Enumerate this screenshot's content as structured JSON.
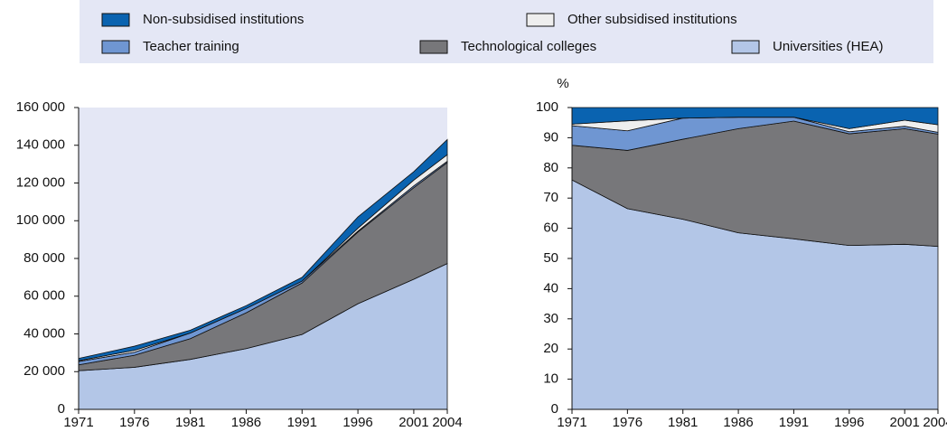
{
  "legend_positions_note_free": null,
  "chart_data": [
    {
      "type": "area",
      "stacked": true,
      "background": "#e4e7f5",
      "x": [
        1971,
        1976,
        1981,
        1986,
        1991,
        1996,
        2001,
        2004
      ],
      "xlim": [
        1971,
        2004
      ],
      "xticks": [
        1971,
        1976,
        1981,
        1986,
        1991,
        1996,
        2001,
        2004
      ],
      "ylim": [
        0,
        160000
      ],
      "yticks": [
        0,
        {
          "value": 20000,
          "label": "20 000"
        },
        {
          "value": 40000,
          "label": "40 000"
        },
        {
          "value": 60000,
          "label": "60 000"
        },
        {
          "value": 80000,
          "label": "80 000"
        },
        {
          "value": 100000,
          "label": "100 000"
        },
        {
          "value": 120000,
          "label": "120 000"
        },
        {
          "value": 140000,
          "label": "140 000"
        },
        {
          "value": 160000,
          "label": "160 000"
        }
      ],
      "series": [
        {
          "name": "Universities (HEA)",
          "color": "#b3c6e7",
          "values": [
            20500,
            22300,
            26500,
            32200,
            39700,
            56000,
            69000,
            77300
          ]
        },
        {
          "name": "Technological colleges",
          "color": "#77777a",
          "values": [
            3100,
            6400,
            11000,
            19000,
            27300,
            38000,
            48500,
            53500
          ]
        },
        {
          "name": "Teacher training",
          "color": "#6f96d2",
          "values": [
            1800,
            1600,
            3000,
            2300,
            1000,
            500,
            1000,
            700
          ]
        },
        {
          "name": "Other subsidised institutions",
          "color": "#eeeeee",
          "values": [
            400,
            1000,
            0,
            0,
            0,
            1500,
            3000,
            3500
          ]
        },
        {
          "name": "Non-subsidised institutions",
          "color": "#0a63b0",
          "values": [
            1200,
            2200,
            1500,
            1500,
            2000,
            6000,
            4500,
            8000
          ]
        }
      ]
    },
    {
      "type": "area",
      "stacked": true,
      "background": "#e4e7f5",
      "y_label": "%",
      "x": [
        1971,
        1976,
        1981,
        1986,
        1991,
        1996,
        2001,
        2004
      ],
      "xlim": [
        1971,
        2004
      ],
      "xticks": [
        1971,
        1976,
        1981,
        1986,
        1991,
        1996,
        2001,
        2004
      ],
      "ylim": [
        0,
        100
      ],
      "yticks": [
        0,
        10,
        20,
        30,
        40,
        50,
        60,
        70,
        80,
        90,
        100
      ],
      "series": [
        {
          "color": "#b3c6e7",
          "values": [
            76,
            66.5,
            63,
            58.5,
            56.5,
            54.3,
            54.7,
            54
          ]
        },
        {
          "color": "#77777a",
          "values": [
            11.5,
            19.3,
            26.5,
            34.5,
            39,
            37,
            38.3,
            37.2
          ]
        },
        {
          "color": "#6f96d2",
          "values": [
            6.5,
            6.5,
            7,
            3.8,
            1.3,
            0.7,
            0.8,
            0.6
          ]
        },
        {
          "color": "#eeeeee",
          "values": [
            0.5,
            3.3,
            0,
            0,
            0,
            1,
            2,
            2.5
          ]
        },
        {
          "color": "#0a63b0",
          "values": [
            5.5,
            4.4,
            3.5,
            3.2,
            3.2,
            7,
            4.2,
            5.7
          ]
        }
      ]
    }
  ]
}
